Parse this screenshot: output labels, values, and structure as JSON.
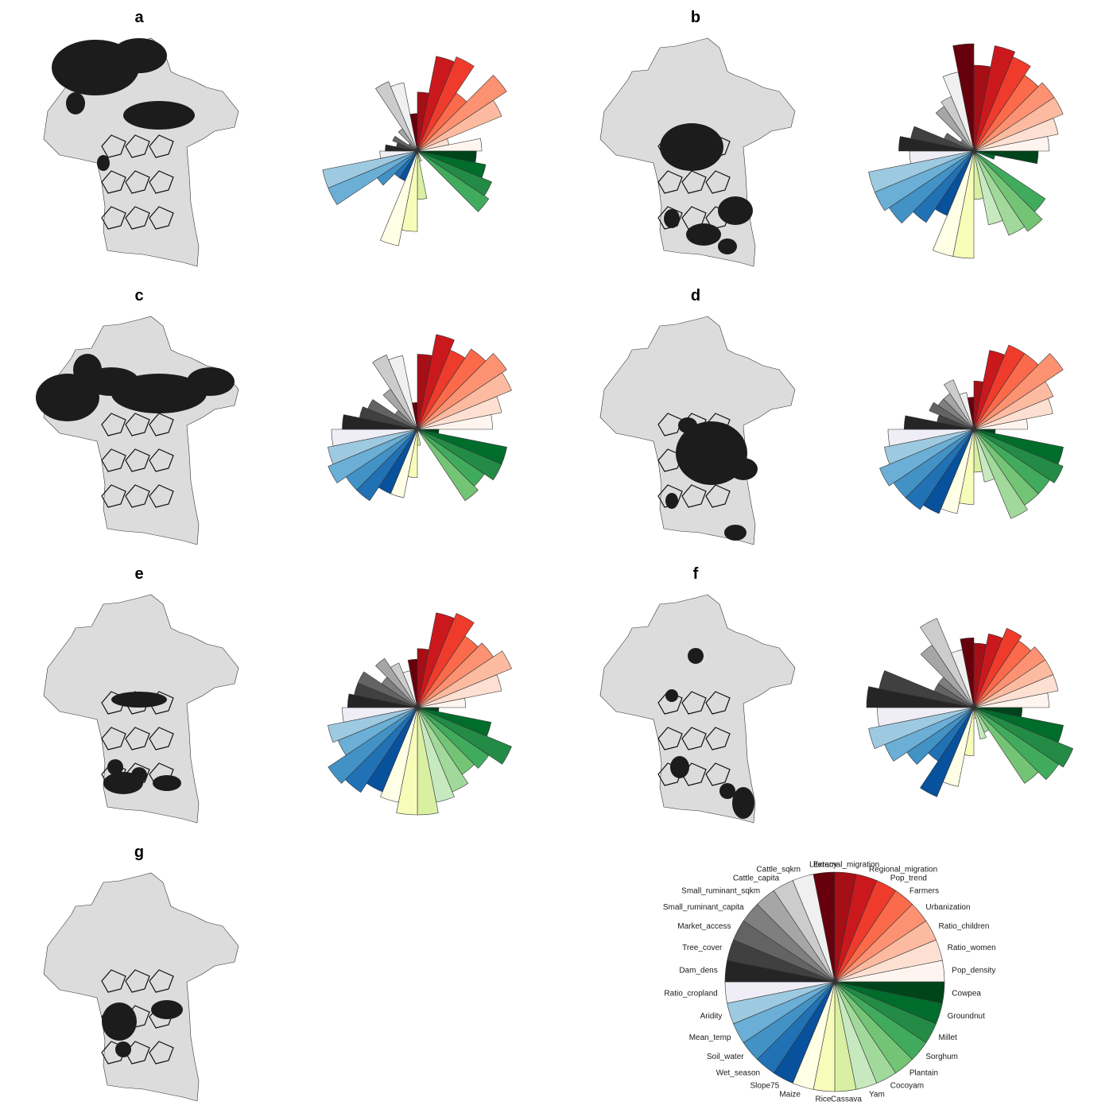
{
  "chart_data": {
    "type": "figure",
    "panel_labels": [
      "a",
      "b",
      "c",
      "d",
      "e",
      "f",
      "g"
    ],
    "variables": [
      "External_migration",
      "Regional_migration",
      "Pop_trend",
      "Farmers",
      "Urbanization",
      "Ratio_children",
      "Ratio_women",
      "Pop_density",
      "Cowpea",
      "Groundnut",
      "Millet",
      "Sorghum",
      "Plantain",
      "Cocoyam",
      "Yam",
      "Cassava",
      "Rice",
      "Maize",
      "Slope75",
      "Wet_season",
      "Soil_water",
      "Mean_temp",
      "Aridity",
      "Ratio_cropland",
      "Dam_dens",
      "Tree_cover",
      "Market_access",
      "Small_ruminant_capita",
      "Small_ruminant_sqkm",
      "Cattle_capita",
      "Cattle_sqkm",
      "Literacy"
    ],
    "colors": [
      "#a50f15",
      "#cb181d",
      "#ef3b2c",
      "#fb6a4a",
      "#fc9272",
      "#fcbba1",
      "#fee0d2",
      "#fff5f0",
      "#00441b",
      "#006d2c",
      "#238b45",
      "#41ab5d",
      "#74c476",
      "#a1d99b",
      "#c7e9c0",
      "#d9f0a3",
      "#f7fcb9",
      "#ffffe5",
      "#08519c",
      "#2171b5",
      "#4292c6",
      "#6baed6",
      "#9ecae1",
      "#efedf5",
      "#252525",
      "#404040",
      "#636363",
      "#7f7f7f",
      "#a6a6a6",
      "#cccccc",
      "#f0f0f0",
      "#67000d"
    ],
    "radar_type": "rose",
    "rose_values": [
      [
        0.55,
        0.9,
        0.95,
        0.65,
        1.0,
        0.85,
        0.3,
        0.6,
        0.55,
        0.65,
        0.75,
        0.8,
        0.0,
        0.0,
        0.1,
        0.45,
        0.75,
        0.9,
        0.3,
        0.3,
        0.45,
        0.9,
        0.9,
        0.35,
        0.3,
        0.2,
        0.25,
        0.1,
        0.25,
        0.7,
        0.65,
        0.35
      ],
      [
        0.8,
        1.0,
        0.95,
        0.85,
        0.9,
        0.9,
        0.8,
        0.7,
        0.6,
        0.2,
        0.0,
        0.8,
        0.9,
        0.85,
        0.7,
        0.45,
        1.0,
        1.0,
        0.65,
        0.8,
        0.95,
        1.0,
        1.0,
        0.6,
        0.7,
        0.6,
        0.3,
        0.15,
        0.5,
        0.55,
        0.75,
        1.0
      ],
      [
        0.7,
        0.9,
        0.8,
        0.9,
        1.0,
        0.95,
        0.8,
        0.7,
        0.2,
        0.85,
        0.85,
        0.75,
        0.8,
        0.0,
        0.0,
        0.15,
        0.45,
        0.65,
        0.65,
        0.8,
        0.8,
        0.9,
        0.85,
        0.8,
        0.7,
        0.55,
        0.5,
        0.25,
        0.45,
        0.75,
        0.7,
        0.25
      ],
      [
        0.45,
        0.75,
        0.85,
        0.85,
        1.0,
        0.8,
        0.75,
        0.5,
        0.2,
        0.85,
        0.9,
        0.85,
        0.85,
        0.9,
        0.5,
        0.4,
        0.7,
        0.8,
        0.85,
        0.9,
        0.9,
        0.95,
        0.85,
        0.8,
        0.65,
        0.35,
        0.45,
        0.4,
        0.4,
        0.5,
        0.35,
        0.3
      ],
      [
        0.55,
        0.9,
        0.95,
        0.8,
        0.85,
        0.95,
        0.8,
        0.45,
        0.2,
        0.7,
        0.95,
        0.8,
        0.75,
        0.85,
        0.9,
        1.0,
        1.0,
        0.9,
        0.85,
        0.95,
        1.0,
        0.8,
        0.85,
        0.7,
        0.65,
        0.6,
        0.6,
        0.4,
        0.55,
        0.45,
        0.35,
        0.45
      ],
      [
        0.6,
        0.7,
        0.8,
        0.75,
        0.8,
        0.8,
        0.8,
        0.7,
        0.45,
        0.85,
        1.0,
        0.95,
        0.85,
        0.25,
        0.3,
        0.1,
        0.45,
        0.75,
        0.9,
        0.6,
        0.75,
        0.9,
        1.0,
        0.9,
        1.0,
        0.9,
        0.4,
        0.4,
        0.7,
        0.9,
        0.55,
        0.65
      ]
    ]
  },
  "panels": [
    {
      "label": "a"
    },
    {
      "label": "b"
    },
    {
      "label": "c"
    },
    {
      "label": "d"
    },
    {
      "label": "e"
    },
    {
      "label": "f"
    },
    {
      "label": "g"
    }
  ]
}
